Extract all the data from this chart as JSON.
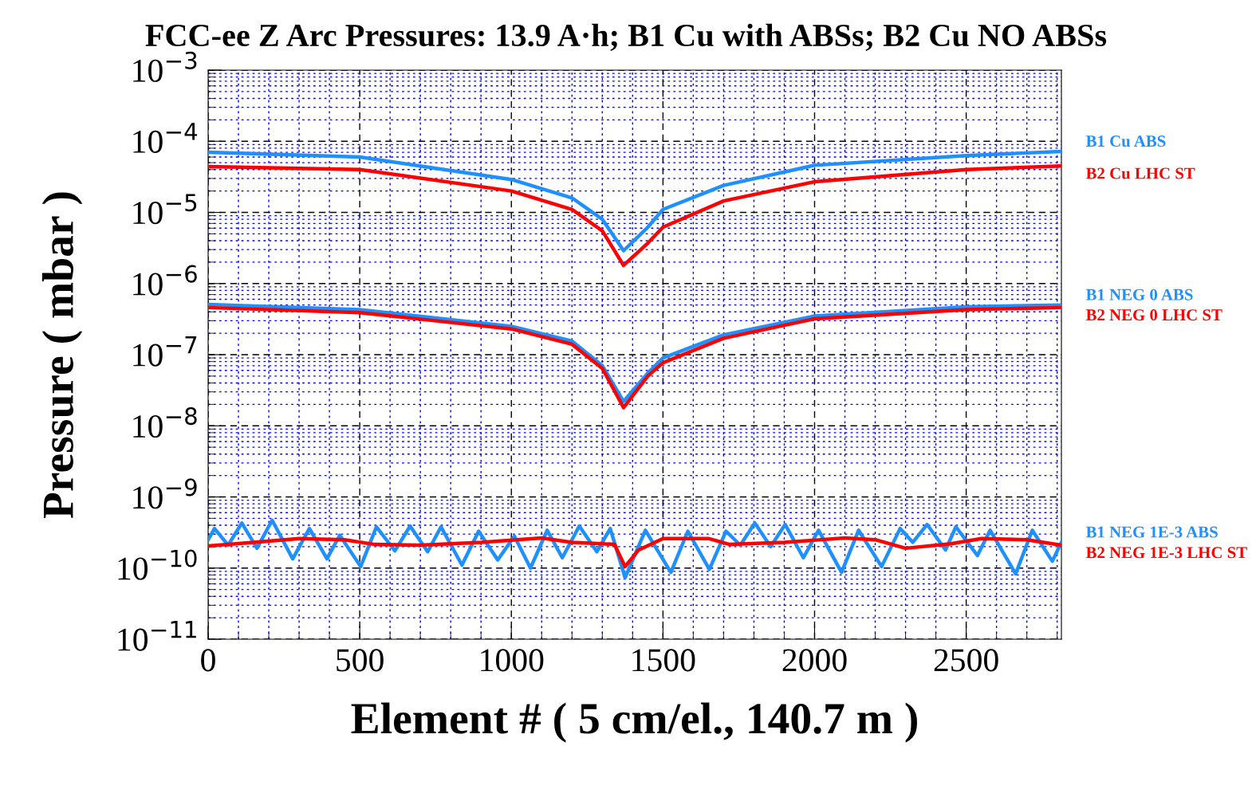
{
  "chart_data": {
    "type": "line",
    "title": "FCC-ee Z Arc Pressures: 13.9 A·h; B1 Cu with ABSs; B2 Cu NO ABSs",
    "xlabel": "Element # ( 5 cm/el., 140.7 m )",
    "ylabel": "Pressure ( mbar )",
    "log": "y",
    "grid": true,
    "legend": false,
    "marker": "none",
    "line_style": "solid",
    "xlim": [
      0,
      2814
    ],
    "xticks": [
      0,
      {
        "value": 100,
        "label": null
      },
      {
        "value": 200,
        "label": null
      },
      {
        "value": 300,
        "label": null
      },
      {
        "value": 400,
        "label": null
      },
      500,
      {
        "value": 600,
        "label": null
      },
      {
        "value": 700,
        "label": null
      },
      {
        "value": 800,
        "label": null
      },
      {
        "value": 900,
        "label": null
      },
      1000,
      {
        "value": 1100,
        "label": null
      },
      {
        "value": 1200,
        "label": null
      },
      {
        "value": 1300,
        "label": null
      },
      {
        "value": 1400,
        "label": null
      },
      1500,
      {
        "value": 1600,
        "label": null
      },
      {
        "value": 1700,
        "label": null
      },
      {
        "value": 1800,
        "label": null
      },
      {
        "value": 1900,
        "label": null
      },
      2000,
      {
        "value": 2100,
        "label": null
      },
      {
        "value": 2200,
        "label": null
      },
      {
        "value": 2300,
        "label": null
      },
      {
        "value": 2400,
        "label": null
      },
      2500,
      {
        "value": 2600,
        "label": null
      },
      {
        "value": 2700,
        "label": null
      },
      {
        "value": 2800,
        "label": null
      }
    ],
    "ylim": [
      1e-11,
      0.001
    ],
    "yticks": [
      {
        "value": 0.001,
        "label": "10$^{−3}$"
      },
      {
        "value": 0.0001,
        "label": "10$^{−4}$"
      },
      {
        "value": 1e-05,
        "label": "10$^{−5}$"
      },
      {
        "value": 1e-06,
        "label": "10$^{−6}$"
      },
      {
        "value": 1e-07,
        "label": "10$^{−7}$"
      },
      {
        "value": 1e-08,
        "label": "10$^{−8}$"
      },
      {
        "value": 1e-09,
        "label": "10$^{−9}$"
      },
      {
        "value": 1e-10,
        "label": "10$^{−10}$"
      },
      {
        "value": 1e-11,
        "label": "10$^{−11}$"
      },
      {
        "value": 2e-11,
        "label": null
      },
      {
        "value": 3e-11,
        "label": null
      },
      {
        "value": 4e-11,
        "label": null
      },
      {
        "value": 5e-11,
        "label": null
      },
      {
        "value": 6e-11,
        "label": null
      },
      {
        "value": 7e-11,
        "label": null
      },
      {
        "value": 8e-11,
        "label": null
      },
      {
        "value": 9e-11,
        "label": null
      },
      {
        "value": 2e-10,
        "label": null
      },
      {
        "value": 3e-10,
        "label": null
      },
      {
        "value": 4e-10,
        "label": null
      },
      {
        "value": 5e-10,
        "label": null
      },
      {
        "value": 6e-10,
        "label": null
      },
      {
        "value": 7e-10,
        "label": null
      },
      {
        "value": 8e-10,
        "label": null
      },
      {
        "value": 9e-10,
        "label": null
      },
      {
        "value": 2e-09,
        "label": null
      },
      {
        "value": 3e-09,
        "label": null
      },
      {
        "value": 4e-09,
        "label": null
      },
      {
        "value": 5e-09,
        "label": null
      },
      {
        "value": 6e-09,
        "label": null
      },
      {
        "value": 7e-09,
        "label": null
      },
      {
        "value": 8e-09,
        "label": null
      },
      {
        "value": 9e-09,
        "label": null
      },
      {
        "value": 2e-08,
        "label": null
      },
      {
        "value": 3e-08,
        "label": null
      },
      {
        "value": 4e-08,
        "label": null
      },
      {
        "value": 5e-08,
        "label": null
      },
      {
        "value": 6e-08,
        "label": null
      },
      {
        "value": 7e-08,
        "label": null
      },
      {
        "value": 8e-08,
        "label": null
      },
      {
        "value": 9e-08,
        "label": null
      },
      {
        "value": 2e-07,
        "label": null
      },
      {
        "value": 3e-07,
        "label": null
      },
      {
        "value": 4e-07,
        "label": null
      },
      {
        "value": 5e-07,
        "label": null
      },
      {
        "value": 6e-07,
        "label": null
      },
      {
        "value": 7e-07,
        "label": null
      },
      {
        "value": 8e-07,
        "label": null
      },
      {
        "value": 9e-07,
        "label": null
      },
      {
        "value": 2e-06,
        "label": null
      },
      {
        "value": 3e-06,
        "label": null
      },
      {
        "value": 4e-06,
        "label": null
      },
      {
        "value": 5e-06,
        "label": null
      },
      {
        "value": 6e-06,
        "label": null
      },
      {
        "value": 7e-06,
        "label": null
      },
      {
        "value": 8e-06,
        "label": null
      },
      {
        "value": 9e-06,
        "label": null
      },
      {
        "value": 2e-05,
        "label": null
      },
      {
        "value": 3e-05,
        "label": null
      },
      {
        "value": 4e-05,
        "label": null
      },
      {
        "value": 5e-05,
        "label": null
      },
      {
        "value": 6e-05,
        "label": null
      },
      {
        "value": 7e-05,
        "label": null
      },
      {
        "value": 8e-05,
        "label": null
      },
      {
        "value": 9e-05,
        "label": null
      },
      {
        "value": 0.0002,
        "label": null
      },
      {
        "value": 0.0003,
        "label": null
      },
      {
        "value": 0.0004,
        "label": null
      },
      {
        "value": 0.0005,
        "label": null
      },
      {
        "value": 0.0006,
        "label": null
      },
      {
        "value": 0.0007,
        "label": null
      },
      {
        "value": 0.0008,
        "label": null
      },
      {
        "value": 0.0009,
        "label": null
      }
    ],
    "series": [
      {
        "name": "B1 Cu ABS",
        "color": "#1e90ff",
        "x": [
          0,
          500,
          1000,
          1200,
          1300,
          1370,
          1450,
          1500,
          1700,
          2000,
          2500,
          2814
        ],
        "values": [
          7e-05,
          6e-05,
          2.9e-05,
          1.6e-05,
          8e-06,
          2.9e-06,
          6.2e-06,
          1.1e-05,
          2.4e-05,
          4.6e-05,
          6.3e-05,
          7.2e-05
        ]
      },
      {
        "name": "B2 Cu LHC ST",
        "color": "#ff0000",
        "x": [
          0,
          500,
          1000,
          1200,
          1300,
          1370,
          1450,
          1500,
          1700,
          2000,
          2500,
          2814
        ],
        "values": [
          4.4e-05,
          4e-05,
          2e-05,
          1.1e-05,
          5.5e-06,
          1.8e-06,
          3.7e-06,
          6.2e-06,
          1.45e-05,
          2.7e-05,
          4e-05,
          4.5e-05
        ]
      },
      {
        "name": "B1 NEG 0 ABS",
        "color": "#1e90ff",
        "x": [
          0,
          500,
          1000,
          1200,
          1300,
          1370,
          1450,
          1500,
          1700,
          2000,
          2500,
          2814
        ],
        "values": [
          5.1e-07,
          4.3e-07,
          2.5e-07,
          1.55e-07,
          7e-08,
          2.2e-08,
          5.5e-08,
          9e-08,
          1.9e-07,
          3.5e-07,
          4.7e-07,
          5e-07
        ]
      },
      {
        "name": "B2 NEG 0 LHC ST",
        "color": "#ff0000",
        "x": [
          0,
          500,
          1000,
          1200,
          1300,
          1370,
          1450,
          1500,
          1700,
          2000,
          2500,
          2814
        ],
        "values": [
          4.6e-07,
          3.9e-07,
          2.3e-07,
          1.4e-07,
          6.4e-08,
          1.8e-08,
          5e-08,
          7.7e-08,
          1.7e-07,
          3.2e-07,
          4.3e-07,
          4.6e-07
        ]
      },
      {
        "name": "B1 NEG 1E-3 ABS",
        "color": "#1e90ff",
        "x": [
          0,
          21,
          66,
          111,
          161,
          211,
          279,
          334,
          392,
          434,
          503,
          555,
          616,
          666,
          724,
          768,
          837,
          892,
          955,
          1010,
          1063,
          1118,
          1168,
          1224,
          1282,
          1326,
          1375,
          1442,
          1526,
          1582,
          1653,
          1708,
          1755,
          1803,
          1855,
          1903,
          1963,
          2013,
          2089,
          2145,
          2221,
          2282,
          2324,
          2371,
          2432,
          2466,
          2537,
          2579,
          2663,
          2718,
          2784,
          2814
        ],
        "values": [
          2.5e-10,
          3.6e-10,
          2.1e-10,
          4.3e-10,
          1.9e-10,
          4.7e-10,
          1.35e-10,
          3.6e-10,
          1.35e-10,
          2.9e-10,
          1.05e-10,
          3.8e-10,
          1.75e-10,
          3.9e-10,
          1.7e-10,
          3.8e-10,
          1.1e-10,
          3.3e-10,
          1.3e-10,
          2.8e-10,
          1e-10,
          3.4e-10,
          1.4e-10,
          3.9e-10,
          1.7e-10,
          3.6e-10,
          7.3e-11,
          3.4e-10,
          8.7e-11,
          3.3e-10,
          9.6e-11,
          3.3e-10,
          2.1e-10,
          4.3e-10,
          2e-10,
          4.1e-10,
          1.4e-10,
          3.4e-10,
          8.7e-11,
          3.4e-10,
          1.05e-10,
          3.6e-10,
          2.3e-10,
          4.1e-10,
          1.8e-10,
          3.8e-10,
          1.5e-10,
          3.4e-10,
          8.3e-11,
          3.4e-10,
          1.25e-10,
          2.3e-10
        ]
      },
      {
        "name": "B2 NEG 1E-3 LHC ST",
        "color": "#ff0000",
        "x": [
          0,
          150,
          300,
          450,
          550,
          700,
          900,
          1100,
          1200,
          1300,
          1340,
          1375,
          1420,
          1500,
          1650,
          1720,
          1900,
          2100,
          2200,
          2300,
          2450,
          2550,
          2700,
          2814
        ],
        "values": [
          2.05e-10,
          2.3e-10,
          2.6e-10,
          2.5e-10,
          2.15e-10,
          2.1e-10,
          2.3e-10,
          2.65e-10,
          2.3e-10,
          2.2e-10,
          2.15e-10,
          1.05e-10,
          1.8e-10,
          2.6e-10,
          2.6e-10,
          2.15e-10,
          2.3e-10,
          2.65e-10,
          2.5e-10,
          1.9e-10,
          2.2e-10,
          2.6e-10,
          2.5e-10,
          2.1e-10
        ]
      }
    ]
  }
}
